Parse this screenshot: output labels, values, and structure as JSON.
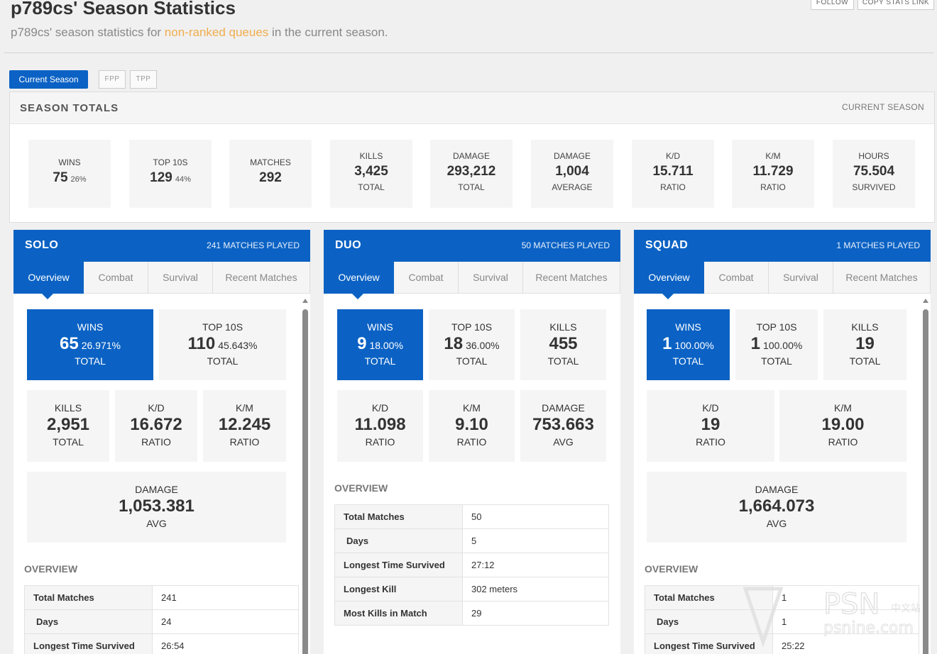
{
  "header": {
    "title": "p789cs' Season Statistics",
    "subtitle_pre": "p789cs' season statistics for ",
    "subtitle_link": "non-ranked queues",
    "subtitle_post": " in the current season.",
    "follow": "FOLLOW",
    "copy_link": "COPY STATS LINK"
  },
  "season_tabs": [
    "Current Season",
    "FPP",
    "TPP"
  ],
  "totals": {
    "title": "SEASON TOTALS",
    "right": "CURRENT SEASON",
    "cards": [
      {
        "label": "WINS",
        "value": "75",
        "pct": "26%",
        "sub": ""
      },
      {
        "label": "TOP 10S",
        "value": "129",
        "pct": "44%",
        "sub": ""
      },
      {
        "label": "MATCHES",
        "value": "292",
        "pct": "",
        "sub": ""
      },
      {
        "label": "KILLS",
        "value": "3,425",
        "pct": "",
        "sub": "TOTAL"
      },
      {
        "label": "DAMAGE",
        "value": "293,212",
        "pct": "",
        "sub": "TOTAL"
      },
      {
        "label": "DAMAGE",
        "value": "1,004",
        "pct": "",
        "sub": "AVERAGE"
      },
      {
        "label": "K/D",
        "value": "15.711",
        "pct": "",
        "sub": "RATIO"
      },
      {
        "label": "K/M",
        "value": "11.729",
        "pct": "",
        "sub": "RATIO"
      },
      {
        "label": "HOURS",
        "value": "75.504",
        "pct": "",
        "sub": "SURVIVED"
      }
    ]
  },
  "panel_tabs": [
    "Overview",
    "Combat",
    "Survival",
    "Recent Matches"
  ],
  "overview_title": "OVERVIEW",
  "panels": [
    {
      "title": "SOLO",
      "matches": "241 MATCHES PLAYED",
      "cards": [
        {
          "label": "WINS",
          "value": "65",
          "pct": "26.971%",
          "sub": "TOTAL"
        },
        {
          "label": "TOP 10S",
          "value": "110",
          "pct": "45.643%",
          "sub": "TOTAL"
        },
        {
          "label": "KILLS",
          "value": "2,951",
          "pct": "",
          "sub": "TOTAL"
        },
        {
          "label": "K/D",
          "value": "16.672",
          "pct": "",
          "sub": "RATIO"
        },
        {
          "label": "K/M",
          "value": "12.245",
          "pct": "",
          "sub": "RATIO"
        },
        {
          "label": "DAMAGE",
          "value": "1,053.381",
          "pct": "",
          "sub": "AVG"
        }
      ],
      "overview": [
        {
          "k": "Total Matches",
          "v": "241"
        },
        {
          "k": "Days",
          "v": "24"
        },
        {
          "k": "Longest Time Survived",
          "v": "26:54"
        }
      ]
    },
    {
      "title": "DUO",
      "matches": "50 MATCHES PLAYED",
      "cards": [
        {
          "label": "WINS",
          "value": "9",
          "pct": "18.00%",
          "sub": "TOTAL"
        },
        {
          "label": "TOP 10S",
          "value": "18",
          "pct": "36.00%",
          "sub": "TOTAL"
        },
        {
          "label": "KILLS",
          "value": "455",
          "pct": "",
          "sub": "TOTAL"
        },
        {
          "label": "K/D",
          "value": "11.098",
          "pct": "",
          "sub": "RATIO"
        },
        {
          "label": "K/M",
          "value": "9.10",
          "pct": "",
          "sub": "RATIO"
        },
        {
          "label": "DAMAGE",
          "value": "753.663",
          "pct": "",
          "sub": "AVG"
        }
      ],
      "overview": [
        {
          "k": "Total Matches",
          "v": "50"
        },
        {
          "k": "Days",
          "v": "5"
        },
        {
          "k": "Longest Time Survived",
          "v": "27:12"
        },
        {
          "k": "Longest Kill",
          "v": "302 meters"
        },
        {
          "k": "Most Kills in Match",
          "v": "29"
        }
      ]
    },
    {
      "title": "SQUAD",
      "matches": "1 MATCHES PLAYED",
      "cards": [
        {
          "label": "WINS",
          "value": "1",
          "pct": "100.00%",
          "sub": "TOTAL"
        },
        {
          "label": "TOP 10S",
          "value": "1",
          "pct": "100.00%",
          "sub": "TOTAL"
        },
        {
          "label": "KILLS",
          "value": "19",
          "pct": "",
          "sub": "TOTAL"
        },
        {
          "label": "K/D",
          "value": "19",
          "pct": "",
          "sub": "RATIO"
        },
        {
          "label": "K/M",
          "value": "19.00",
          "pct": "",
          "sub": "RATIO"
        },
        {
          "label": "DAMAGE",
          "value": "1,664.073",
          "pct": "",
          "sub": "AVG"
        }
      ],
      "overview": [
        {
          "k": "Total Matches",
          "v": "1"
        },
        {
          "k": "Days",
          "v": "1"
        },
        {
          "k": "Longest Time Survived",
          "v": "25:22"
        }
      ]
    }
  ],
  "watermark": {
    "brand": "PSN",
    "sub": "中文站",
    "url": "psnine.com"
  },
  "colors": {
    "accent": "#0b62c4",
    "link": "#f0ad4e"
  }
}
